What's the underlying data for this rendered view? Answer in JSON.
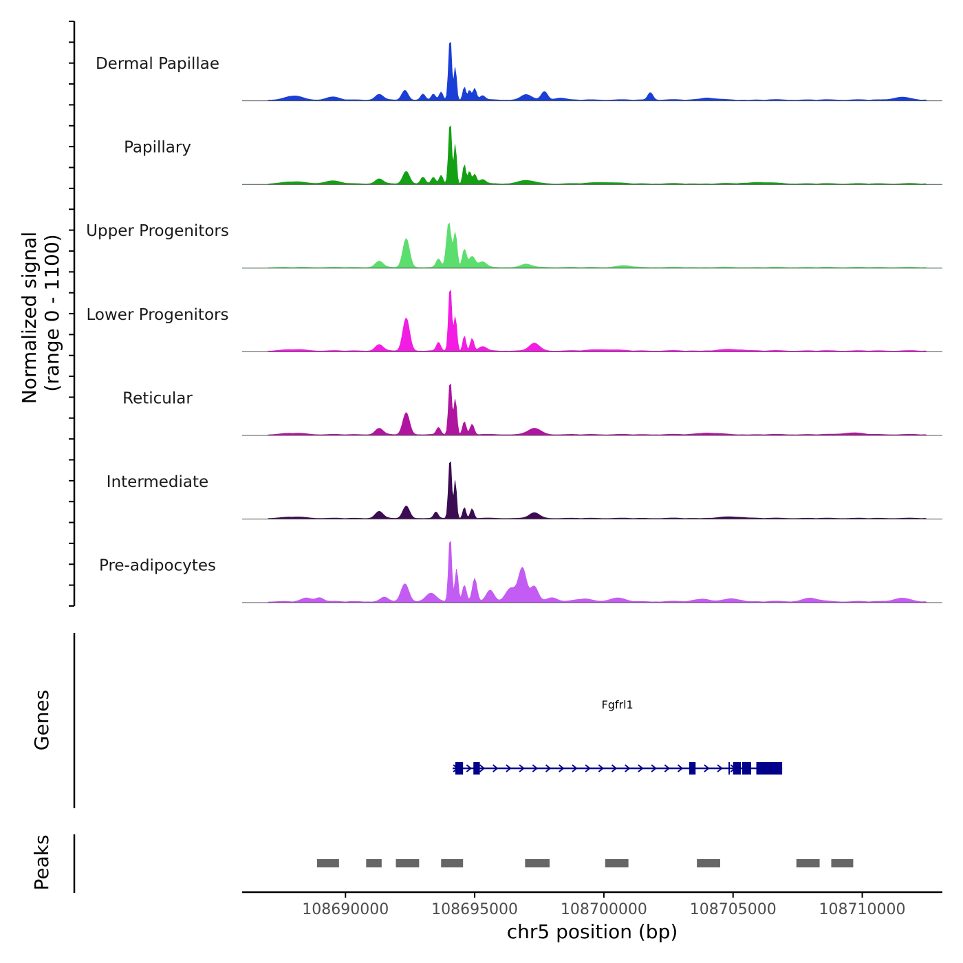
{
  "chart_data": {
    "type": "area",
    "title": "",
    "chromosome": "chr5",
    "xlabel": "chr5 position (bp)",
    "ylabel": "Normalized signal",
    "ylabel_range": "(range 0 - 1100)",
    "xlim": [
      108686000,
      108713100
    ],
    "ylim": [
      0,
      1100
    ],
    "x_ticks": [
      108690000,
      108695000,
      108700000,
      108705000,
      108710000
    ],
    "x_tick_labels": [
      "108690000",
      "108695000",
      "108700000",
      "108705000",
      "108710000"
    ],
    "tracks": [
      {
        "name": "Dermal Papillae",
        "color": "#1a3fd6",
        "peaks": [
          [
            108688000,
            30,
            300
          ],
          [
            108689500,
            20,
            250
          ],
          [
            108691300,
            40,
            150
          ],
          [
            108692300,
            70,
            120
          ],
          [
            108693000,
            45,
            90
          ],
          [
            108693400,
            40,
            80
          ],
          [
            108693700,
            55,
            70
          ],
          [
            108694050,
            460,
            60
          ],
          [
            108694250,
            240,
            50
          ],
          [
            108694600,
            95,
            60
          ],
          [
            108694800,
            70,
            60
          ],
          [
            108695000,
            85,
            70
          ],
          [
            108695300,
            30,
            100
          ],
          [
            108697000,
            40,
            200
          ],
          [
            108697700,
            60,
            120
          ],
          [
            108698300,
            15,
            200
          ],
          [
            108701800,
            55,
            100
          ],
          [
            108704000,
            15,
            300
          ],
          [
            108711500,
            20,
            300
          ]
        ],
        "base": 10
      },
      {
        "name": "Papillary",
        "color": "#14a014",
        "peaks": [
          [
            108688000,
            15,
            400
          ],
          [
            108689500,
            20,
            300
          ],
          [
            108691300,
            35,
            150
          ],
          [
            108692350,
            90,
            130
          ],
          [
            108693000,
            50,
            90
          ],
          [
            108693400,
            45,
            80
          ],
          [
            108693700,
            60,
            70
          ],
          [
            108694050,
            460,
            60
          ],
          [
            108694250,
            290,
            50
          ],
          [
            108694600,
            140,
            60
          ],
          [
            108694800,
            90,
            60
          ],
          [
            108695000,
            70,
            70
          ],
          [
            108695300,
            30,
            120
          ],
          [
            108697000,
            25,
            300
          ],
          [
            108700000,
            10,
            500
          ],
          [
            108706000,
            10,
            500
          ]
        ],
        "base": 8
      },
      {
        "name": "Upper Progenitors",
        "color": "#5cde6e",
        "peaks": [
          [
            108691300,
            45,
            150
          ],
          [
            108692350,
            210,
            130
          ],
          [
            108693600,
            60,
            90
          ],
          [
            108694000,
            330,
            90
          ],
          [
            108694250,
            250,
            70
          ],
          [
            108694600,
            130,
            80
          ],
          [
            108694900,
            80,
            120
          ],
          [
            108695300,
            40,
            150
          ],
          [
            108697000,
            25,
            200
          ],
          [
            108700800,
            12,
            300
          ]
        ],
        "base": 8
      },
      {
        "name": "Lower Progenitors",
        "color": "#f21ce3",
        "peaks": [
          [
            108688000,
            10,
            400
          ],
          [
            108691300,
            45,
            150
          ],
          [
            108692350,
            240,
            130
          ],
          [
            108693600,
            60,
            80
          ],
          [
            108694050,
            480,
            60
          ],
          [
            108694250,
            250,
            60
          ],
          [
            108694600,
            110,
            60
          ],
          [
            108694900,
            90,
            70
          ],
          [
            108695300,
            30,
            150
          ],
          [
            108697300,
            55,
            200
          ],
          [
            108700000,
            10,
            500
          ],
          [
            108705000,
            10,
            500
          ]
        ],
        "base": 10
      },
      {
        "name": "Reticular",
        "color": "#b0159f",
        "peaks": [
          [
            108688000,
            10,
            400
          ],
          [
            108691300,
            45,
            150
          ],
          [
            108692350,
            160,
            130
          ],
          [
            108693600,
            50,
            80
          ],
          [
            108694050,
            400,
            60
          ],
          [
            108694250,
            260,
            60
          ],
          [
            108694600,
            95,
            70
          ],
          [
            108694900,
            75,
            80
          ],
          [
            108697300,
            45,
            250
          ],
          [
            108704000,
            12,
            400
          ],
          [
            108709600,
            12,
            400
          ]
        ],
        "base": 9
      },
      {
        "name": "Intermediate",
        "color": "#3c0b52",
        "peaks": [
          [
            108688000,
            10,
            400
          ],
          [
            108691300,
            50,
            150
          ],
          [
            108692350,
            90,
            130
          ],
          [
            108693500,
            45,
            80
          ],
          [
            108694050,
            450,
            60
          ],
          [
            108694250,
            280,
            50
          ],
          [
            108694600,
            80,
            60
          ],
          [
            108694900,
            70,
            70
          ],
          [
            108697300,
            40,
            200
          ],
          [
            108705000,
            10,
            500
          ]
        ],
        "base": 8
      },
      {
        "name": "Pre-adipocytes",
        "color": "#c35cf2",
        "peaks": [
          [
            108688500,
            25,
            200
          ],
          [
            108689000,
            30,
            150
          ],
          [
            108691500,
            30,
            150
          ],
          [
            108692300,
            130,
            150
          ],
          [
            108693300,
            60,
            200
          ],
          [
            108694050,
            480,
            60
          ],
          [
            108694300,
            240,
            60
          ],
          [
            108694600,
            120,
            80
          ],
          [
            108695000,
            170,
            90
          ],
          [
            108695600,
            80,
            150
          ],
          [
            108696400,
            100,
            200
          ],
          [
            108696850,
            240,
            150
          ],
          [
            108697300,
            110,
            150
          ],
          [
            108698000,
            30,
            200
          ],
          [
            108699200,
            20,
            300
          ],
          [
            108700500,
            25,
            300
          ],
          [
            108703800,
            20,
            300
          ],
          [
            108705000,
            20,
            300
          ],
          [
            108708000,
            25,
            300
          ],
          [
            108711500,
            25,
            300
          ]
        ],
        "base": 12
      }
    ],
    "genes_track_label": "Genes",
    "gene": {
      "name": "Fgfrl1",
      "color": "#00008b",
      "start": 108694150,
      "end": 108706900,
      "strand": "+",
      "exons": [
        [
          108694250,
          108694550
        ],
        [
          108694950,
          108695200
        ],
        [
          108703300,
          108703550
        ],
        [
          108705000,
          108705300
        ],
        [
          108705350,
          108705700
        ],
        [
          108705900,
          108706900
        ]
      ]
    },
    "peaks_track_label": "Peaks",
    "peak_color": "#666666",
    "peak_regions": [
      [
        108688900,
        108689750
      ],
      [
        108690800,
        108691400
      ],
      [
        108691950,
        108692850
      ],
      [
        108693700,
        108694550
      ],
      [
        108696950,
        108697900
      ],
      [
        108700050,
        108700950
      ],
      [
        108703600,
        108704500
      ],
      [
        108707450,
        108708350
      ],
      [
        108708800,
        108709650
      ]
    ]
  }
}
